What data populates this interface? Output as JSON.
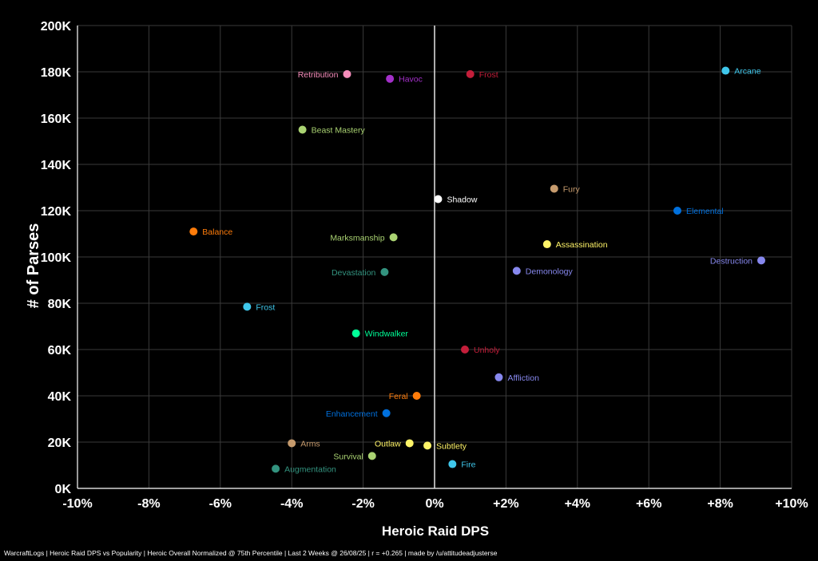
{
  "chart_data": {
    "type": "scatter",
    "title": "",
    "xlabel": "Heroic Raid DPS",
    "ylabel": "# of Parses",
    "xlim": [
      -10,
      10
    ],
    "ylim": [
      0,
      200000
    ],
    "x_ticks": [
      {
        "v": -10,
        "label": "-10%"
      },
      {
        "v": -8,
        "label": "-8%"
      },
      {
        "v": -6,
        "label": "-6%"
      },
      {
        "v": -4,
        "label": "-4%"
      },
      {
        "v": -2,
        "label": "-2%"
      },
      {
        "v": 0,
        "label": "0%"
      },
      {
        "v": 2,
        "label": "+2%"
      },
      {
        "v": 4,
        "label": "+4%"
      },
      {
        "v": 6,
        "label": "+6%"
      },
      {
        "v": 8,
        "label": "+8%"
      },
      {
        "v": 10,
        "label": "+10%"
      }
    ],
    "y_ticks": [
      {
        "v": 0,
        "label": "0K"
      },
      {
        "v": 20000,
        "label": "20K"
      },
      {
        "v": 40000,
        "label": "40K"
      },
      {
        "v": 60000,
        "label": "60K"
      },
      {
        "v": 80000,
        "label": "80K"
      },
      {
        "v": 100000,
        "label": "100K"
      },
      {
        "v": 120000,
        "label": "120K"
      },
      {
        "v": 140000,
        "label": "140K"
      },
      {
        "v": 160000,
        "label": "160K"
      },
      {
        "v": 180000,
        "label": "180K"
      },
      {
        "v": 200000,
        "label": "200K"
      }
    ],
    "grid": true,
    "zero_line_x": 0,
    "points": [
      {
        "name": "Retribution",
        "x": -2.45,
        "y": 179000,
        "color": "#F58CBA",
        "label_side": "left"
      },
      {
        "name": "Havoc",
        "x": -1.25,
        "y": 177000,
        "color": "#A330C9",
        "label_side": "right"
      },
      {
        "name": "Frost",
        "x": 1.0,
        "y": 179000,
        "color": "#C41E3A",
        "label_side": "right"
      },
      {
        "name": "Arcane",
        "x": 8.15,
        "y": 180500,
        "color": "#3FC7EB",
        "label_side": "right"
      },
      {
        "name": "Beast Mastery",
        "x": -3.7,
        "y": 155000,
        "color": "#AAD372",
        "label_side": "right"
      },
      {
        "name": "Fury",
        "x": 3.35,
        "y": 129500,
        "color": "#C69B6D",
        "label_side": "right"
      },
      {
        "name": "Shadow",
        "x": 0.1,
        "y": 125000,
        "color": "#FFFFFF",
        "label_side": "right"
      },
      {
        "name": "Elemental",
        "x": 6.8,
        "y": 120000,
        "color": "#0070DD",
        "label_side": "right"
      },
      {
        "name": "Balance",
        "x": -6.75,
        "y": 111000,
        "color": "#FF7C0A",
        "label_side": "right"
      },
      {
        "name": "Marksmanship",
        "x": -1.15,
        "y": 108500,
        "color": "#AAD372",
        "label_side": "left"
      },
      {
        "name": "Assassination",
        "x": 3.15,
        "y": 105500,
        "color": "#FFF468",
        "label_side": "right"
      },
      {
        "name": "Destruction",
        "x": 9.15,
        "y": 98500,
        "color": "#8788EE",
        "label_side": "left"
      },
      {
        "name": "Devastation",
        "x": -1.4,
        "y": 93500,
        "color": "#33937F",
        "label_side": "left"
      },
      {
        "name": "Demonology",
        "x": 2.3,
        "y": 94000,
        "color": "#8788EE",
        "label_side": "right"
      },
      {
        "name": "Frost",
        "x": -5.25,
        "y": 78500,
        "color": "#3FC7EB",
        "label_side": "right"
      },
      {
        "name": "Windwalker",
        "x": -2.2,
        "y": 67000,
        "color": "#00FF98",
        "label_side": "right"
      },
      {
        "name": "Unholy",
        "x": 0.85,
        "y": 60000,
        "color": "#C41E3A",
        "label_side": "right"
      },
      {
        "name": "Affliction",
        "x": 1.8,
        "y": 48000,
        "color": "#8788EE",
        "label_side": "right"
      },
      {
        "name": "Feral",
        "x": -0.5,
        "y": 40000,
        "color": "#FF7C0A",
        "label_side": "left"
      },
      {
        "name": "Enhancement",
        "x": -1.35,
        "y": 32500,
        "color": "#0070DD",
        "label_side": "left"
      },
      {
        "name": "Arms",
        "x": -4.0,
        "y": 19500,
        "color": "#C69B6D",
        "label_side": "right"
      },
      {
        "name": "Outlaw",
        "x": -0.7,
        "y": 19500,
        "color": "#FFF468",
        "label_side": "left"
      },
      {
        "name": "Subtlety",
        "x": -0.2,
        "y": 18500,
        "color": "#FFF468",
        "label_side": "right"
      },
      {
        "name": "Survival",
        "x": -1.75,
        "y": 14000,
        "color": "#AAD372",
        "label_side": "left"
      },
      {
        "name": "Augmentation",
        "x": -4.45,
        "y": 8500,
        "color": "#33937F",
        "label_side": "right"
      },
      {
        "name": "Fire",
        "x": 0.5,
        "y": 10500,
        "color": "#3FC7EB",
        "label_side": "right"
      }
    ]
  },
  "footer": "WarcraftLogs | Heroic Raid DPS vs Popularity | Heroic Overall Normalized @ 75th Percentile | Last 2 Weeks @ 26/08/25 | r = +0.265 | made by /u/attitudeadjusterse"
}
